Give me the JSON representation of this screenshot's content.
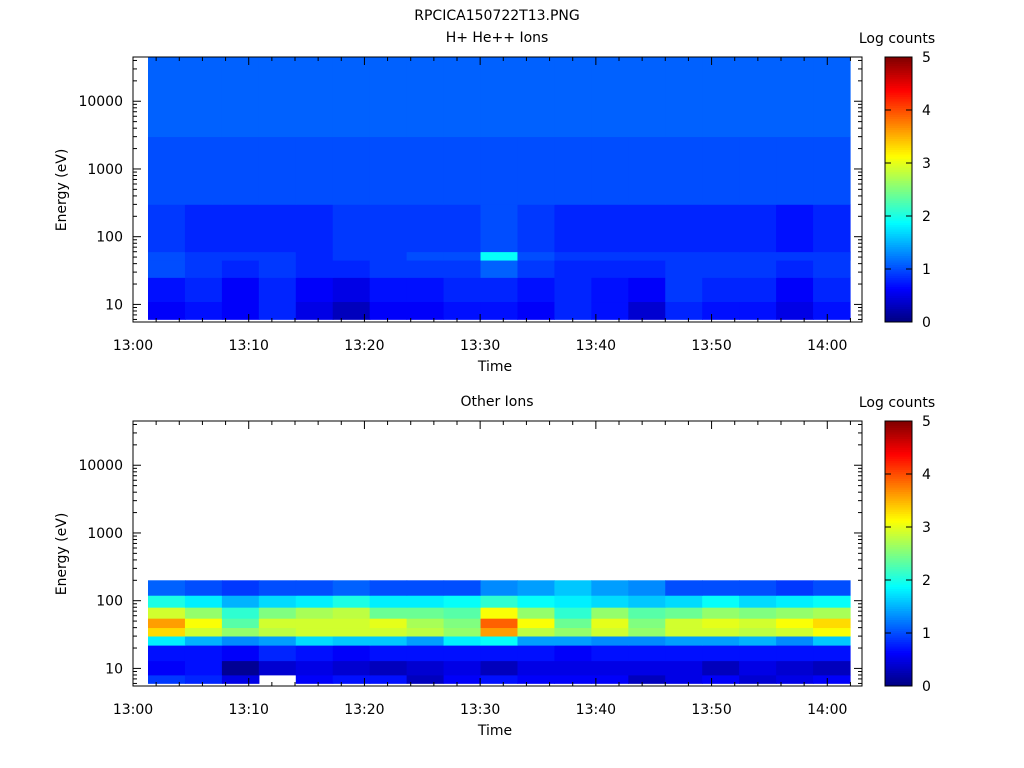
{
  "figure_title": "RPCICA150722T13.PNG",
  "chart_data": [
    {
      "type": "heatmap",
      "title": "H+ He++ Ions",
      "xlabel": "Time",
      "ylabel": "Energy (eV)",
      "y_scale": "log",
      "ylim": [
        5.5,
        45000
      ],
      "xlim": [
        "13:00",
        "14:03"
      ],
      "x_ticks": [
        "13:00",
        "13:10",
        "13:20",
        "13:30",
        "13:40",
        "13:50",
        "14:00"
      ],
      "y_ticks": [
        "10",
        "100",
        "1000",
        "10000"
      ],
      "colorbar": {
        "label": "Log counts",
        "range": [
          0,
          5
        ],
        "ticks": [
          "0",
          "1",
          "2",
          "3",
          "4",
          "5"
        ],
        "colormap": "jet"
      },
      "time_bins": [
        "13:01",
        "13:05",
        "13:08",
        "13:11",
        "13:15",
        "13:18",
        "13:21",
        "13:24",
        "13:27",
        "13:31",
        "13:34",
        "13:37",
        "13:40",
        "13:44",
        "13:47",
        "13:50",
        "13:53",
        "13:57",
        "14:00"
      ],
      "energy_bands_eV": [
        {
          "from": 6,
          "to": 11,
          "log_counts": [
            0.6,
            0.7,
            0.6,
            0.8,
            0.5,
            0.3,
            0.6,
            0.6,
            0.7,
            0.7,
            0.6,
            0.8,
            0.7,
            0.4,
            0.8,
            0.7,
            0.7,
            0.5,
            0.7
          ]
        },
        {
          "from": 11,
          "to": 25,
          "log_counts": [
            0.7,
            0.8,
            0.6,
            0.8,
            0.6,
            0.5,
            0.7,
            0.7,
            0.8,
            0.8,
            0.7,
            0.8,
            0.7,
            0.6,
            0.9,
            0.8,
            0.8,
            0.6,
            0.8
          ]
        },
        {
          "from": 25,
          "to": 60,
          "log_counts": [
            1.0,
            0.9,
            0.8,
            0.9,
            0.8,
            0.8,
            0.9,
            0.9,
            0.9,
            1.1,
            0.9,
            0.8,
            0.8,
            0.8,
            0.9,
            0.9,
            0.9,
            0.8,
            0.9
          ]
        },
        {
          "from": 45,
          "to": 60,
          "log_counts": [
            1.0,
            0.9,
            0.9,
            0.9,
            0.8,
            0.9,
            0.9,
            1.0,
            1.0,
            1.9,
            1.0,
            0.9,
            0.9,
            0.9,
            0.9,
            0.9,
            0.9,
            0.9,
            0.9
          ]
        },
        {
          "from": 60,
          "to": 300,
          "log_counts": [
            0.9,
            0.8,
            0.8,
            0.8,
            0.8,
            0.9,
            0.9,
            0.9,
            0.9,
            1.0,
            0.9,
            0.8,
            0.8,
            0.8,
            0.8,
            0.8,
            0.8,
            0.7,
            0.8
          ]
        },
        {
          "from": 300,
          "to": 3000,
          "log_counts": [
            1.0,
            1.0,
            1.0,
            1.0,
            1.0,
            1.0,
            1.0,
            1.0,
            1.0,
            1.0,
            1.0,
            1.0,
            1.0,
            1.0,
            1.0,
            1.0,
            1.0,
            1.0,
            1.0
          ]
        },
        {
          "from": 3000,
          "to": 45000,
          "log_counts": [
            1.1,
            1.1,
            1.1,
            1.1,
            1.1,
            1.1,
            1.1,
            1.1,
            1.1,
            1.1,
            1.1,
            1.1,
            1.1,
            1.1,
            1.1,
            1.1,
            1.1,
            1.1,
            1.1
          ]
        }
      ]
    },
    {
      "type": "heatmap",
      "title": "Other Ions",
      "xlabel": "Time",
      "ylabel": "Energy (eV)",
      "y_scale": "log",
      "ylim": [
        5.5,
        45000
      ],
      "xlim": [
        "13:00",
        "14:03"
      ],
      "x_ticks": [
        "13:00",
        "13:10",
        "13:20",
        "13:30",
        "13:40",
        "13:50",
        "14:00"
      ],
      "y_ticks": [
        "10",
        "100",
        "1000",
        "10000"
      ],
      "colorbar": {
        "label": "Log counts",
        "range": [
          0,
          5
        ],
        "ticks": [
          "0",
          "1",
          "2",
          "3",
          "4",
          "5"
        ],
        "colormap": "jet"
      },
      "time_bins": [
        "13:01",
        "13:05",
        "13:08",
        "13:11",
        "13:15",
        "13:18",
        "13:21",
        "13:24",
        "13:27",
        "13:31",
        "13:34",
        "13:37",
        "13:40",
        "13:44",
        "13:47",
        "13:50",
        "13:53",
        "13:57",
        "14:00"
      ],
      "energy_bands_eV": [
        {
          "from": 6,
          "to": 8,
          "log_counts": [
            0.9,
            0.8,
            0.5,
            null,
            0.6,
            0.7,
            0.7,
            0.3,
            0.6,
            0.7,
            0.6,
            0.6,
            0.6,
            0.3,
            0.5,
            0.6,
            0.4,
            0.5,
            0.6
          ]
        },
        {
          "from": 8,
          "to": 13,
          "log_counts": [
            0.6,
            0.7,
            0.1,
            0.4,
            0.5,
            0.4,
            0.3,
            0.4,
            0.5,
            0.3,
            0.5,
            0.5,
            0.5,
            0.5,
            0.5,
            0.3,
            0.5,
            0.4,
            0.3
          ]
        },
        {
          "from": 13,
          "to": 22,
          "log_counts": [
            0.7,
            0.7,
            0.6,
            0.8,
            0.7,
            0.6,
            0.7,
            0.7,
            0.7,
            0.7,
            0.7,
            0.6,
            0.7,
            0.7,
            0.7,
            0.7,
            0.7,
            0.7,
            0.7
          ]
        },
        {
          "from": 22,
          "to": 30,
          "log_counts": [
            1.8,
            1.5,
            1.3,
            1.4,
            1.7,
            1.6,
            1.6,
            1.4,
            1.8,
            1.9,
            1.4,
            1.4,
            1.3,
            1.3,
            1.4,
            1.4,
            1.5,
            1.3,
            1.6
          ]
        },
        {
          "from": 30,
          "to": 40,
          "log_counts": [
            3.3,
            2.9,
            2.6,
            2.8,
            2.9,
            2.9,
            2.9,
            2.8,
            2.6,
            3.6,
            2.8,
            2.6,
            2.9,
            2.6,
            2.9,
            2.9,
            2.8,
            2.9,
            3.1
          ]
        },
        {
          "from": 40,
          "to": 55,
          "log_counts": [
            3.6,
            3.1,
            2.3,
            2.9,
            2.9,
            2.9,
            3.0,
            2.7,
            2.5,
            3.9,
            3.1,
            2.4,
            3.0,
            2.5,
            2.9,
            3.0,
            2.9,
            3.1,
            3.3
          ]
        },
        {
          "from": 55,
          "to": 80,
          "log_counts": [
            2.9,
            2.6,
            2.1,
            2.5,
            2.7,
            2.8,
            2.4,
            2.4,
            2.3,
            3.1,
            2.6,
            2.1,
            2.6,
            2.3,
            2.4,
            2.6,
            2.5,
            2.6,
            2.7
          ]
        },
        {
          "from": 80,
          "to": 120,
          "log_counts": [
            2.0,
            1.8,
            1.5,
            1.7,
            1.8,
            2.0,
            1.8,
            1.8,
            1.9,
            2.1,
            1.9,
            1.8,
            1.7,
            1.6,
            1.7,
            1.9,
            1.7,
            1.8,
            1.9
          ]
        },
        {
          "from": 120,
          "to": 200,
          "log_counts": [
            1.1,
            1.0,
            0.9,
            1.0,
            1.0,
            1.1,
            1.0,
            1.0,
            1.0,
            1.3,
            1.4,
            1.6,
            1.4,
            1.3,
            1.0,
            1.0,
            1.0,
            0.9,
            1.0
          ]
        }
      ]
    }
  ]
}
